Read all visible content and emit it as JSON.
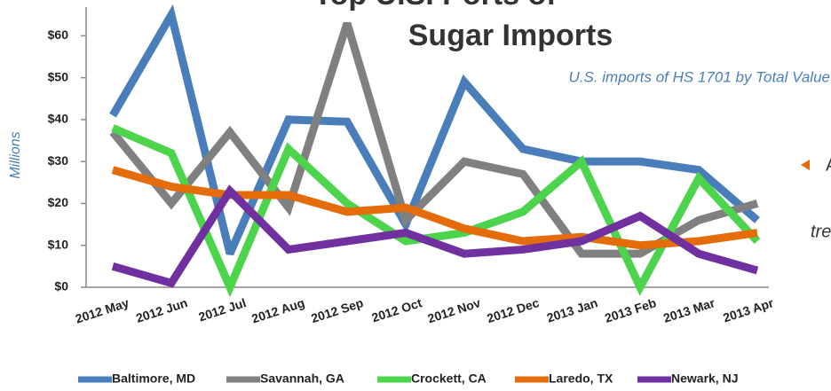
{
  "chart_data": {
    "type": "line",
    "title": [
      "Top U.S. Ports of",
      "Sugar Imports"
    ],
    "subtitle": "U.S. imports of HS 1701 by Total Value",
    "y_label": "Millions",
    "annotations": [
      "A",
      "tre"
    ],
    "categories": [
      "2012 May",
      "2012 Jun",
      "2012 Jul",
      "2012 Aug",
      "2012 Sep",
      "2012 Oct",
      "2012 Nov",
      "2012 Dec",
      "2013 Jan",
      "2013 Feb",
      "2013 Mar",
      "2013 Apr"
    ],
    "series": [
      {
        "name": "Baltimore, MD",
        "color": "#4a7ebb",
        "values": [
          41,
          65,
          8,
          40,
          39.5,
          15,
          49,
          33,
          30,
          30,
          28,
          16
        ]
      },
      {
        "name": "Savannah, GA",
        "color": "#808080",
        "values": [
          37,
          20,
          37,
          19,
          63,
          16,
          30,
          27,
          8,
          8,
          16,
          20
        ]
      },
      {
        "name": "Crockett, CA",
        "color": "#4cd44c",
        "values": [
          38,
          32,
          0,
          33,
          20,
          11,
          13,
          18,
          30,
          0,
          26,
          11
        ]
      },
      {
        "name": "Laredo, TX",
        "color": "#e46c0a",
        "values": [
          28,
          24,
          22,
          22,
          18,
          19,
          14,
          11,
          12,
          10,
          11,
          13
        ]
      },
      {
        "name": "Newark, NJ",
        "color": "#7030a0",
        "values": [
          5,
          1,
          23,
          9,
          11,
          13,
          8,
          9,
          11,
          17,
          8,
          4
        ]
      }
    ],
    "ylim": [
      0,
      66
    ],
    "yticks": [
      {
        "value": 0,
        "label": "$0"
      },
      {
        "value": 10,
        "label": "$10"
      },
      {
        "value": 20,
        "label": "$20"
      },
      {
        "value": 30,
        "label": "$30"
      },
      {
        "value": 40,
        "label": "$40"
      },
      {
        "value": 50,
        "label": "$50"
      },
      {
        "value": 60,
        "label": "$60"
      }
    ],
    "grid": false,
    "legend": "bottom"
  }
}
